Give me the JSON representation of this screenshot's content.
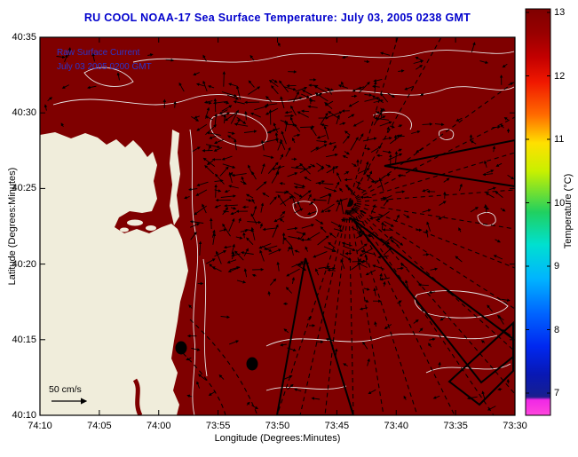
{
  "title": "RU COOL  NOAA-17  Sea Surface Temperature:  July 03, 2005 0238 GMT",
  "annotation": {
    "line1": "Raw Surface Current",
    "line2": "July 03 2005 0200 GMT"
  },
  "axes": {
    "x": {
      "label": "Longitude (Degrees:Minutes)",
      "ticks": [
        "74:10",
        "74:05",
        "74:00",
        "73:55",
        "73:50",
        "73:45",
        "73:40",
        "73:35",
        "73:30"
      ]
    },
    "y": {
      "label": "Latitude (Degrees:Minutes)",
      "ticks": [
        "40:35",
        "40:30",
        "40:25",
        "40:20",
        "40:15",
        "40:10"
      ]
    }
  },
  "colorbar": {
    "label": "Temperature (°C)",
    "ticks": [
      "13",
      "12",
      "11",
      "10",
      "9",
      "8",
      "7"
    ],
    "gradient": [
      {
        "o": 0.0,
        "c": "#7f0000"
      },
      {
        "o": 0.06,
        "c": "#990000"
      },
      {
        "o": 0.12,
        "c": "#c40000"
      },
      {
        "o": 0.18,
        "c": "#f01800"
      },
      {
        "o": 0.26,
        "c": "#ff6a00"
      },
      {
        "o": 0.33,
        "c": "#ffe000"
      },
      {
        "o": 0.4,
        "c": "#c8f000"
      },
      {
        "o": 0.5,
        "c": "#20d060"
      },
      {
        "o": 0.58,
        "c": "#00e0d0"
      },
      {
        "o": 0.664,
        "c": "#00b4ff"
      },
      {
        "o": 0.75,
        "c": "#0064ff"
      },
      {
        "o": 0.83,
        "c": "#0028f0"
      },
      {
        "o": 0.9,
        "c": "#0818b4"
      },
      {
        "o": 0.945,
        "c": "#141e96"
      },
      {
        "o": 0.955,
        "c": "#1e1e8c"
      },
      {
        "o": 0.962,
        "c": "#f028e6"
      },
      {
        "o": 1.0,
        "c": "#ff46dc"
      }
    ]
  },
  "scale_legend": {
    "label": "50 cm/s"
  },
  "colors": {
    "sea": "#7f0000",
    "land": "#f0eddb",
    "title_text": "#0000cc",
    "annotation_text": "#2a35cc",
    "contour": "#e8e8e8",
    "vector": "#000000"
  },
  "chart_data": {
    "type": "heatmap",
    "title": "RU COOL  NOAA-17  Sea Surface Temperature:  July 03, 2005 0238 GMT",
    "xlabel": "Longitude (Degrees:Minutes)",
    "ylabel": "Latitude (Degrees:Minutes)",
    "x_ticks": [
      "74:10",
      "74:05",
      "74:00",
      "73:55",
      "73:50",
      "73:45",
      "73:40",
      "73:35",
      "73:30"
    ],
    "y_ticks": [
      "40:35",
      "40:30",
      "40:25",
      "40:20",
      "40:15",
      "40:10"
    ],
    "colorbar": {
      "label": "Temperature (°C)",
      "ticks": [
        13,
        12,
        11,
        10,
        9,
        8,
        7
      ],
      "range_c": [
        6.5,
        13
      ]
    },
    "sea_surface_temperature_c": 13,
    "legend_scale": "50 cm/s",
    "overlays": [
      "raw surface current vector field (black arrows)",
      "50 cm/s scale arrow",
      "dashed radar bearing lines fanning east/southeast",
      "solid black radar sector outlines",
      "two black circular station markers near the coast",
      "white coastline and cloud-edge contours",
      "cream land mask along the New Jersey coast (left side)"
    ]
  }
}
